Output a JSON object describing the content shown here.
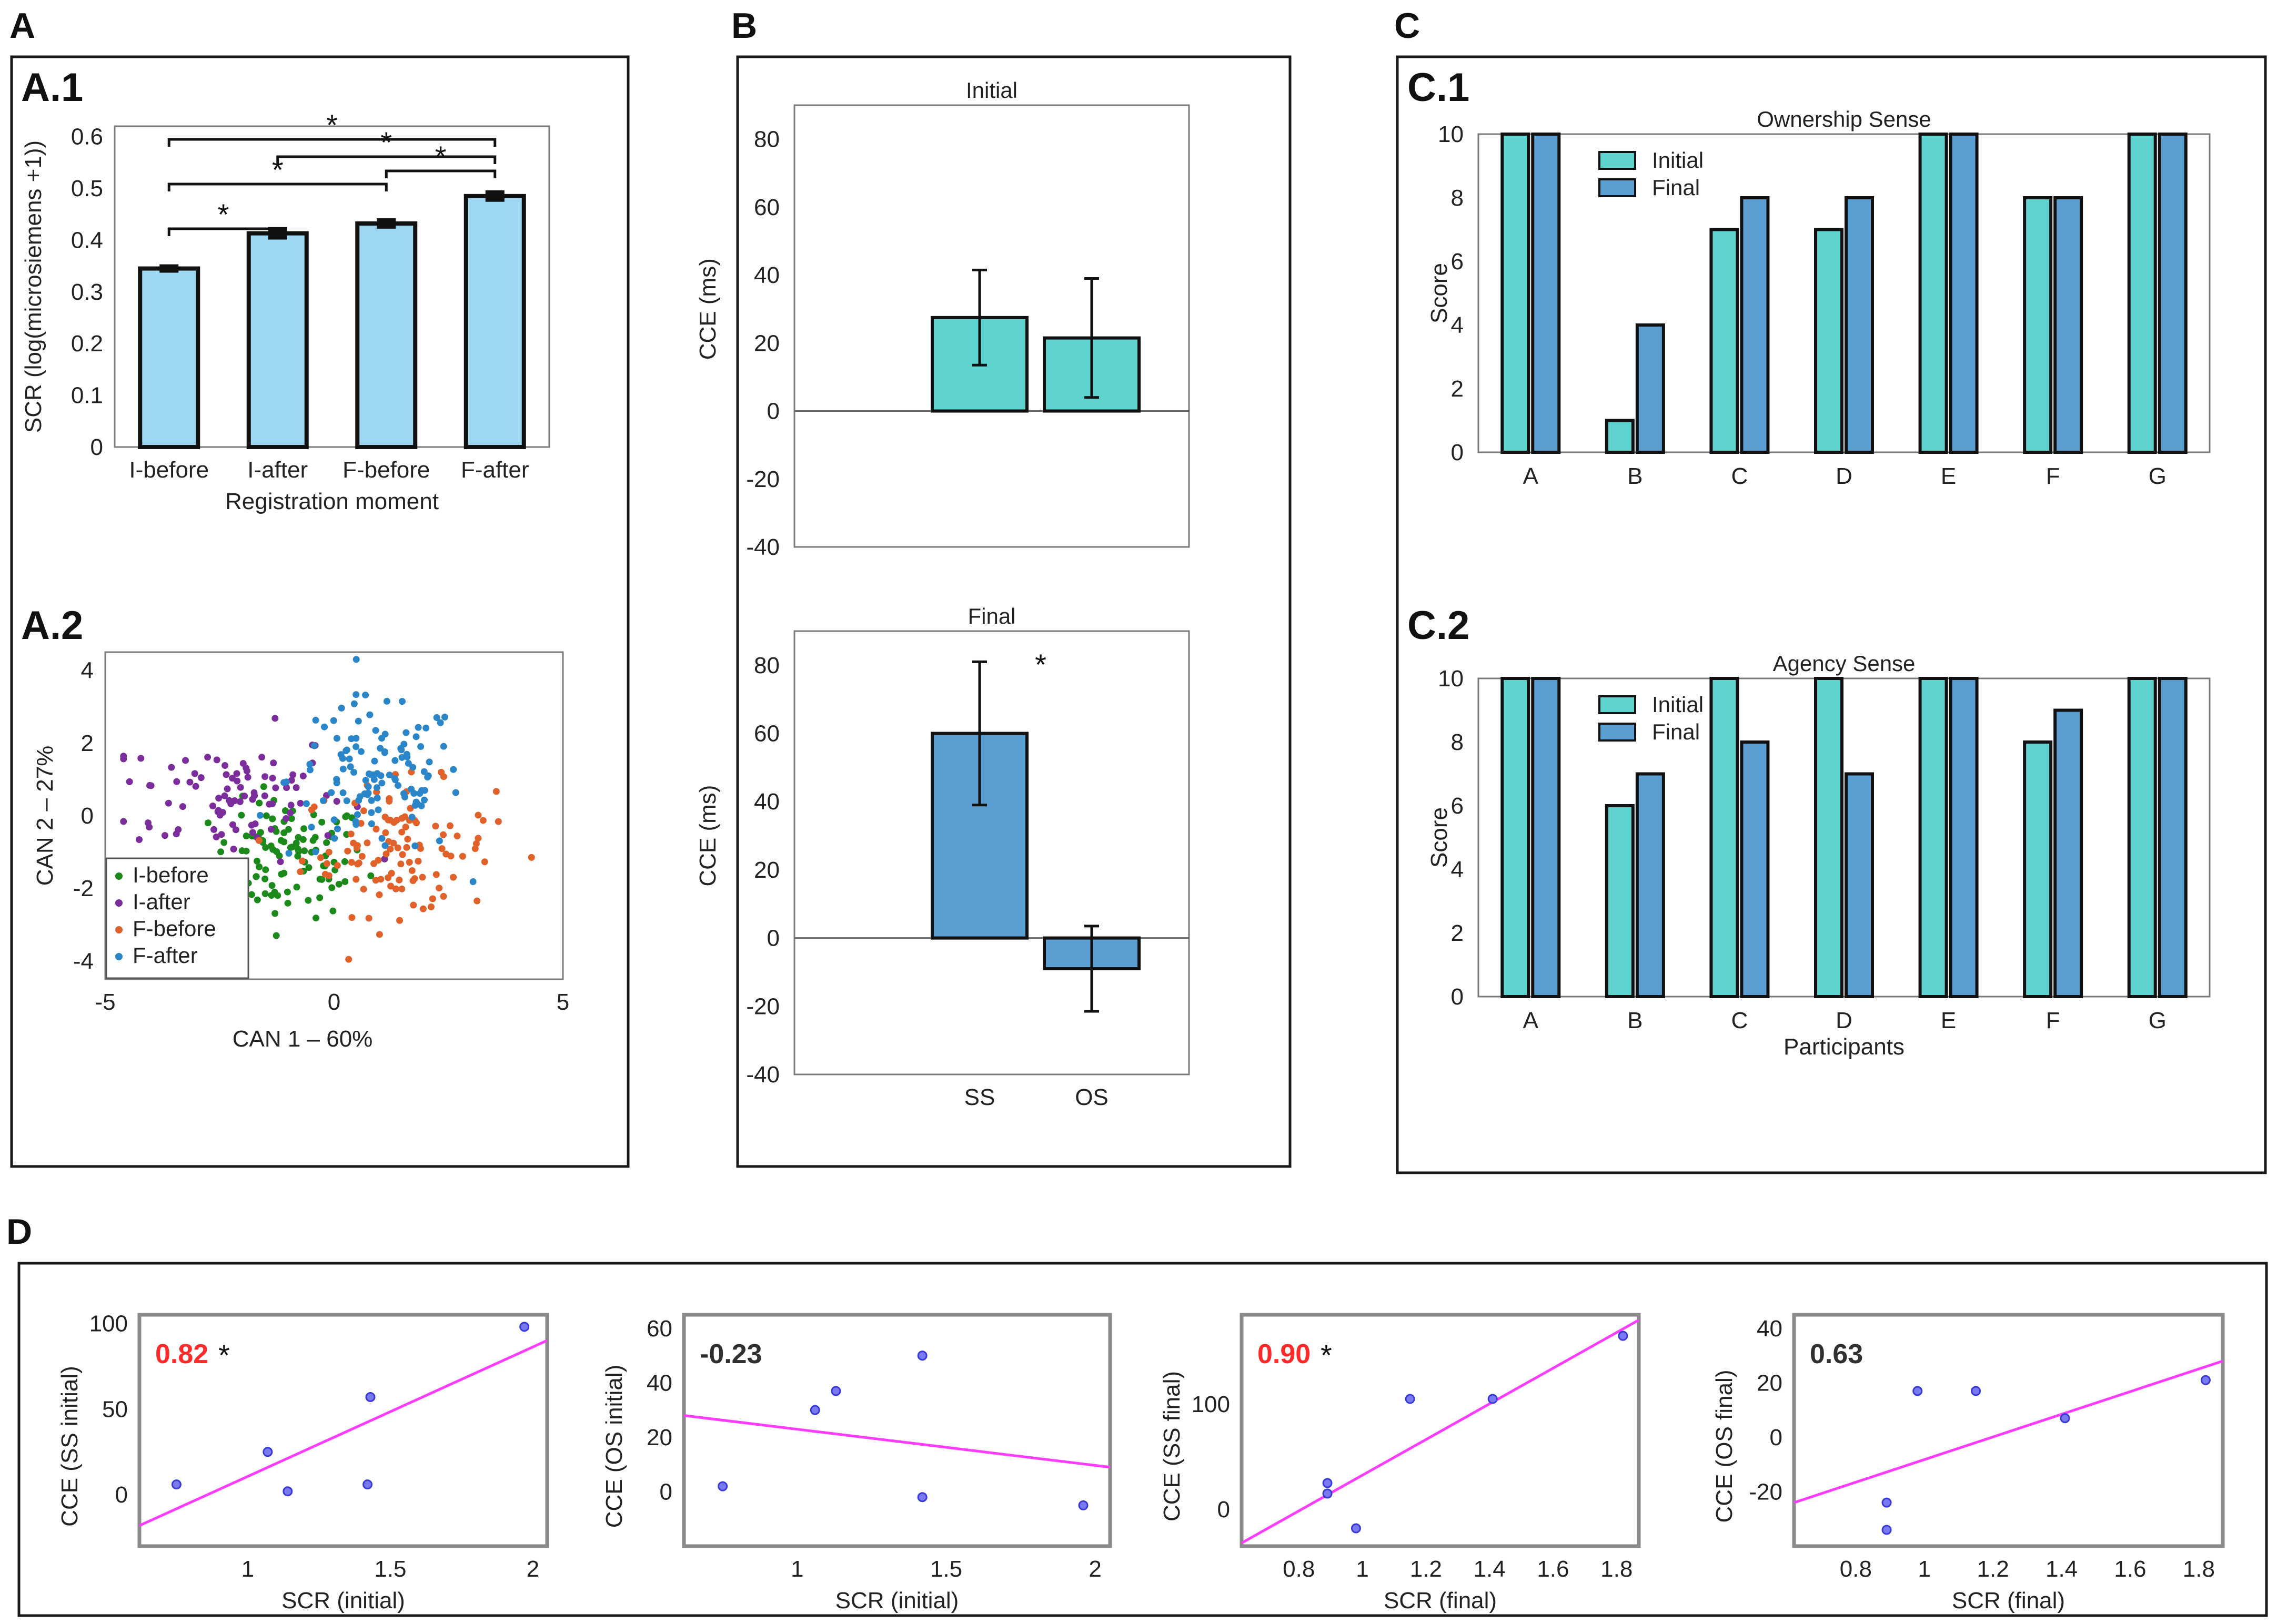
{
  "panels": {
    "A": "A",
    "A1": "A.1",
    "A2": "A.2",
    "B": "B",
    "C": "C",
    "C1": "C.1",
    "C2": "C.2",
    "D": "D"
  },
  "colors": {
    "a1_bar": "#9dd7f2",
    "turquoise": "#5fd3d0",
    "blue": "#5b9fd2",
    "i_before": "#1b8a1b",
    "i_after": "#7b2e9b",
    "f_before": "#e0622a",
    "f_after": "#2a86c8",
    "reg_line": "#ff3cff",
    "scatter_dot": "#3a3ad8",
    "corr_red": "#ff2a2a",
    "corr_dark": "#303030"
  },
  "chart_data": [
    {
      "id": "A1",
      "type": "bar",
      "categories": [
        "I-before",
        "I-after",
        "F-before",
        "F-after"
      ],
      "values": [
        0.345,
        0.413,
        0.432,
        0.485
      ],
      "errors": [
        0.004,
        0.008,
        0.006,
        0.007
      ],
      "xlabel": "Registration moment",
      "ylabel": "SCR (log(microsiemens +1))",
      "ylim": [
        0,
        0.62
      ],
      "yticks": [
        "0",
        "0.1",
        "0.2",
        "0.3",
        "0.4",
        "0.5",
        "0.6"
      ],
      "significance": [
        {
          "from": "I-before",
          "to": "I-after",
          "label": "*"
        },
        {
          "from": "F-before",
          "to": "F-after",
          "label": "*"
        },
        {
          "from": "I-before",
          "to": "F-before",
          "label": "*"
        },
        {
          "from": "I-after",
          "to": "F-after",
          "label": "*"
        },
        {
          "from": "I-before",
          "to": "F-after",
          "label": "*"
        }
      ]
    },
    {
      "id": "A2",
      "type": "scatter",
      "xlabel": "CAN 1 – 60%",
      "ylabel": "CAN 2 – 27%",
      "xlim": [
        -5,
        5
      ],
      "ylim": [
        -4.5,
        4.5
      ],
      "xticks": [
        "-5",
        "0",
        "5"
      ],
      "yticks": [
        "-4",
        "-2",
        "0",
        "2",
        "4"
      ],
      "legend": [
        "I-before",
        "I-after",
        "F-before",
        "F-after"
      ],
      "clusters": [
        {
          "name": "I-before",
          "cx": -1.0,
          "cy": -1.2,
          "sx": 0.85,
          "sy": 0.8,
          "n": 110
        },
        {
          "name": "I-after",
          "cx": -2.3,
          "cy": 0.6,
          "sx": 1.25,
          "sy": 0.9,
          "n": 90
        },
        {
          "name": "F-before",
          "cx": 1.4,
          "cy": -0.9,
          "sx": 1.05,
          "sy": 0.9,
          "n": 110
        },
        {
          "name": "F-after",
          "cx": 0.9,
          "cy": 1.0,
          "sx": 0.95,
          "sy": 1.1,
          "n": 120
        }
      ]
    },
    {
      "id": "B1",
      "type": "bar",
      "title": "Initial",
      "categories": [
        "SS",
        "OS"
      ],
      "values": [
        27.5,
        21.5
      ],
      "errors": [
        14,
        17.5
      ],
      "ylabel": "CCE (ms)",
      "ylim": [
        -40,
        90
      ],
      "yticks": [
        "80",
        "60",
        "40",
        "20",
        "0",
        "-20",
        "-40"
      ]
    },
    {
      "id": "B2",
      "type": "bar",
      "title": "Final",
      "categories": [
        "SS",
        "OS"
      ],
      "values": [
        60,
        -9
      ],
      "errors": [
        21,
        12.5
      ],
      "ylabel": "CCE (ms)",
      "ylim": [
        -40,
        90
      ],
      "yticks": [
        "80",
        "60",
        "40",
        "20",
        "0",
        "-20",
        "-40"
      ],
      "significance_label": "*"
    },
    {
      "id": "C1",
      "type": "bar",
      "title": "Ownership Sense",
      "categories": [
        "A",
        "B",
        "C",
        "D",
        "E",
        "F",
        "G"
      ],
      "series": [
        {
          "name": "Initial",
          "values": [
            10,
            1,
            7,
            7,
            10,
            8,
            10
          ]
        },
        {
          "name": "Final",
          "values": [
            10,
            4,
            8,
            8,
            10,
            8,
            10
          ]
        }
      ],
      "ylabel": "Score",
      "ylim": [
        0,
        10
      ],
      "yticks": [
        "0",
        "2",
        "4",
        "6",
        "8",
        "10"
      ]
    },
    {
      "id": "C2",
      "type": "bar",
      "title": "Agency Sense",
      "categories": [
        "A",
        "B",
        "C",
        "D",
        "E",
        "F",
        "G"
      ],
      "series": [
        {
          "name": "Initial",
          "values": [
            10,
            6,
            10,
            10,
            10,
            8,
            10
          ]
        },
        {
          "name": "Final",
          "values": [
            10,
            7,
            8,
            7,
            10,
            9,
            10
          ]
        }
      ],
      "xlabel": "Participants",
      "ylabel": "Score",
      "ylim": [
        0,
        10
      ],
      "yticks": [
        "0",
        "2",
        "4",
        "6",
        "8",
        "10"
      ]
    },
    {
      "id": "D1",
      "type": "scatter",
      "xlabel": "SCR (initial)",
      "ylabel": "CCE (SS initial)",
      "xlim": [
        0.62,
        2.05
      ],
      "ylim": [
        -30,
        105
      ],
      "xticks": [
        {
          "v": 1,
          "t": "1"
        },
        {
          "v": 1.5,
          "t": "1.5"
        },
        {
          "v": 2,
          "t": "2"
        }
      ],
      "yticks": [
        {
          "v": 0,
          "t": "0"
        },
        {
          "v": 50,
          "t": "50"
        },
        {
          "v": 100,
          "t": "100"
        }
      ],
      "x": [
        0.75,
        1.07,
        1.14,
        1.42,
        1.43,
        1.97
      ],
      "y": [
        6,
        25,
        2,
        6,
        57,
        98
      ],
      "fit_line": [
        [
          0.62,
          -18
        ],
        [
          2.05,
          90
        ]
      ],
      "r": "0.82",
      "significant": true,
      "sig_label": "*"
    },
    {
      "id": "D2",
      "type": "scatter",
      "xlabel": "SCR (initial)",
      "ylabel": "CCE (OS initial)",
      "xlim": [
        0.62,
        2.05
      ],
      "ylim": [
        -20,
        65
      ],
      "xticks": [
        {
          "v": 1,
          "t": "1"
        },
        {
          "v": 1.5,
          "t": "1.5"
        },
        {
          "v": 2,
          "t": "2"
        }
      ],
      "yticks": [
        {
          "v": 0,
          "t": "0"
        },
        {
          "v": 20,
          "t": "20"
        },
        {
          "v": 40,
          "t": "40"
        },
        {
          "v": 60,
          "t": "60"
        }
      ],
      "x": [
        0.75,
        1.06,
        1.13,
        1.42,
        1.42,
        1.96
      ],
      "y": [
        2,
        30,
        37,
        -2,
        50,
        -5
      ],
      "fit_line": [
        [
          0.62,
          28
        ],
        [
          2.05,
          9
        ]
      ],
      "r": "-0.23",
      "significant": false
    },
    {
      "id": "D3",
      "type": "scatter",
      "xlabel": "SCR (final)",
      "ylabel": "CCE (SS final)",
      "xlim": [
        0.62,
        1.87
      ],
      "ylim": [
        -35,
        185
      ],
      "xticks": [
        {
          "v": 0.8,
          "t": "0.8"
        },
        {
          "v": 1,
          "t": "1"
        },
        {
          "v": 1.2,
          "t": "1.2"
        },
        {
          "v": 1.4,
          "t": "1.4"
        },
        {
          "v": 1.6,
          "t": "1.6"
        },
        {
          "v": 1.8,
          "t": "1.8"
        }
      ],
      "yticks": [
        {
          "v": 0,
          "t": "0"
        },
        {
          "v": 100,
          "t": "100"
        }
      ],
      "x": [
        0.89,
        0.89,
        0.98,
        1.15,
        1.41,
        1.82
      ],
      "y": [
        25,
        15,
        -18,
        105,
        105,
        165
      ],
      "fit_line": [
        [
          0.62,
          -32
        ],
        [
          1.87,
          180
        ]
      ],
      "r": "0.90",
      "significant": true,
      "sig_label": "*"
    },
    {
      "id": "D4",
      "type": "scatter",
      "xlabel": "SCR (final)",
      "ylabel": "CCE (OS final)",
      "xlim": [
        0.62,
        1.87
      ],
      "ylim": [
        -40,
        45
      ],
      "xticks": [
        {
          "v": 0.8,
          "t": "0.8"
        },
        {
          "v": 1,
          "t": "1"
        },
        {
          "v": 1.2,
          "t": "1.2"
        },
        {
          "v": 1.4,
          "t": "1.4"
        },
        {
          "v": 1.6,
          "t": "1.6"
        },
        {
          "v": 1.8,
          "t": "1.8"
        }
      ],
      "yticks": [
        {
          "v": -20,
          "t": "-20"
        },
        {
          "v": 0,
          "t": "0"
        },
        {
          "v": 20,
          "t": "20"
        },
        {
          "v": 40,
          "t": "40"
        }
      ],
      "x": [
        0.89,
        0.89,
        0.98,
        1.15,
        1.41,
        1.82
      ],
      "y": [
        -24,
        -34,
        17,
        17,
        7,
        21
      ],
      "fit_line": [
        [
          0.62,
          -24
        ],
        [
          1.87,
          28
        ]
      ],
      "r": "0.63",
      "significant": false
    }
  ]
}
